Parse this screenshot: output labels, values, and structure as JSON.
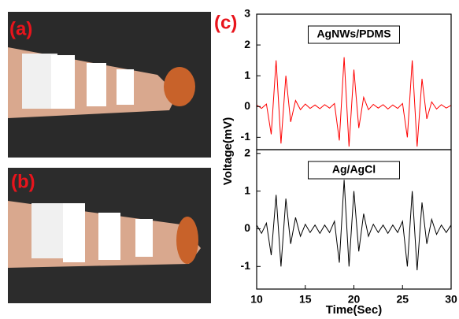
{
  "labels": {
    "a": "(a)",
    "b": "(b)",
    "c": "(c)"
  },
  "chart_data": [
    {
      "type": "line",
      "y_label": "Voltage(mV)",
      "x": [
        10,
        10.5,
        11,
        11.5,
        12,
        12.5,
        13,
        13.5,
        14,
        14.5,
        15,
        15.5,
        16,
        16.5,
        17,
        17.5,
        18,
        18.5,
        19,
        19.5,
        20,
        20.5,
        21,
        21.5,
        22,
        22.5,
        23,
        23.5,
        24,
        24.5,
        25,
        25.5,
        26,
        26.5,
        27,
        27.5,
        28,
        28.5,
        29,
        29.5,
        30
      ],
      "xlim": [
        10,
        30
      ],
      "ylim": [
        -1.4,
        3
      ],
      "yticks": [
        -1,
        0,
        1,
        2,
        3
      ],
      "series": [
        {
          "name": "AgNWs/PDMS",
          "color": "#ff0000",
          "values": [
            0.05,
            -0.06,
            0.08,
            -0.9,
            1.5,
            -1.2,
            1.0,
            -0.5,
            0.2,
            -0.1,
            0.08,
            -0.06,
            0.05,
            -0.07,
            0.06,
            -0.05,
            0.1,
            -1.1,
            1.6,
            -1.3,
            1.2,
            -0.7,
            0.3,
            -0.1,
            0.07,
            -0.05,
            0.06,
            -0.08,
            0.05,
            -0.06,
            0.1,
            -1.0,
            1.5,
            -1.3,
            0.9,
            -0.4,
            0.15,
            -0.08,
            0.06,
            -0.05,
            0.04
          ]
        }
      ]
    },
    {
      "type": "line",
      "x_label": "Time(Sec)",
      "x": [
        10,
        10.5,
        11,
        11.5,
        12,
        12.5,
        13,
        13.5,
        14,
        14.5,
        15,
        15.5,
        16,
        16.5,
        17,
        17.5,
        18,
        18.5,
        19,
        19.5,
        20,
        20.5,
        21,
        21.5,
        22,
        22.5,
        23,
        23.5,
        24,
        24.5,
        25,
        25.5,
        26,
        26.5,
        27,
        27.5,
        28,
        28.5,
        29,
        29.5,
        30
      ],
      "xlim": [
        10,
        30
      ],
      "xticks": [
        10,
        15,
        20,
        25,
        30
      ],
      "ylim": [
        -1.6,
        2.1
      ],
      "yticks": [
        -1,
        0,
        1,
        2
      ],
      "series": [
        {
          "name": "Ag/AgCl",
          "color": "#000000",
          "values": [
            0.1,
            -0.12,
            0.15,
            -0.7,
            0.9,
            -1.0,
            0.8,
            -0.4,
            0.3,
            -0.2,
            0.12,
            -0.1,
            0.1,
            -0.12,
            0.1,
            -0.1,
            0.2,
            -0.9,
            1.3,
            -1.0,
            1.0,
            -0.6,
            0.4,
            -0.2,
            0.12,
            -0.1,
            0.1,
            -0.12,
            0.1,
            -0.1,
            0.2,
            -1.0,
            1.0,
            -1.1,
            0.7,
            -0.4,
            0.25,
            -0.15,
            0.1,
            -0.1,
            0.1
          ]
        }
      ]
    }
  ]
}
